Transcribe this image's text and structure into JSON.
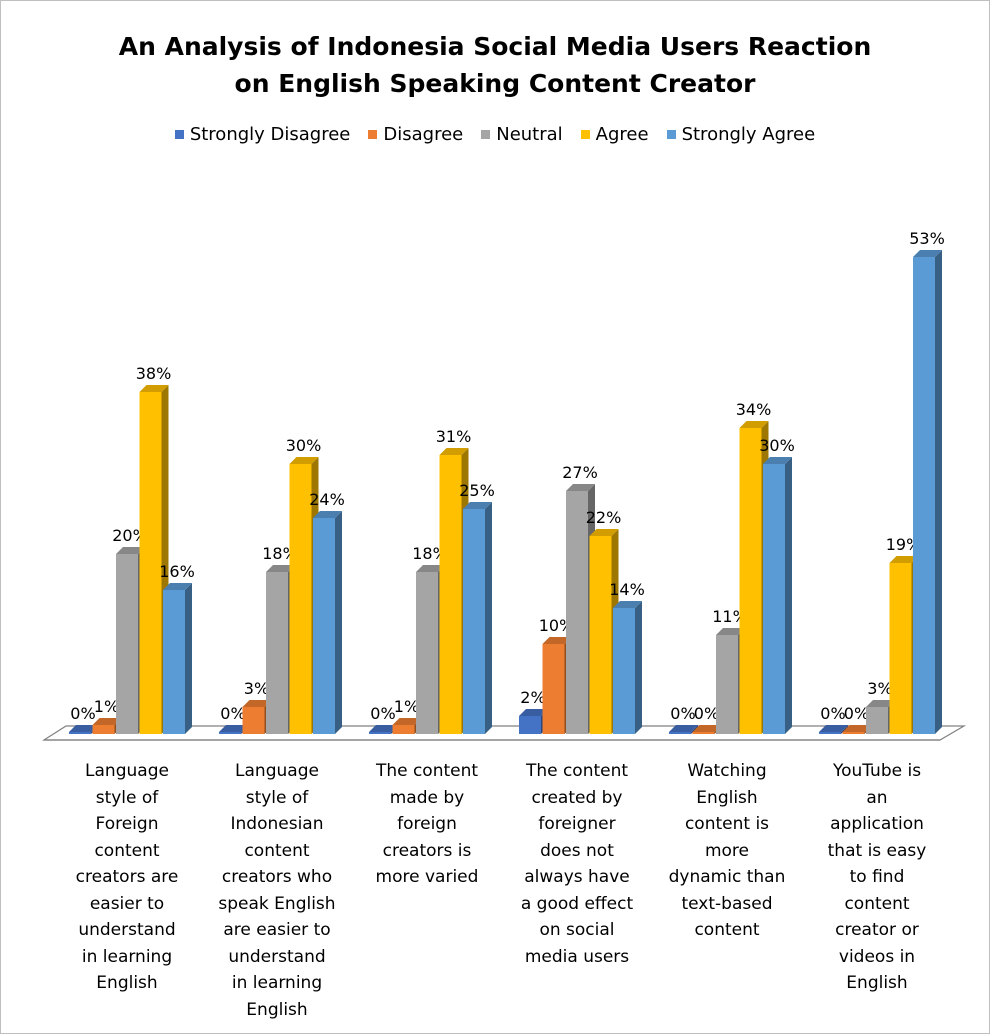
{
  "chart_data": {
    "type": "bar",
    "title_lines": [
      "An Analysis of Indonesia Social Media Users Reaction",
      "on English Speaking Content Creator"
    ],
    "legend_position": "top",
    "categories": [
      "Language style of Foreign content creators are easier to understand in learning English",
      "Language style of Indonesian content creators who speak English are easier to understand in learning English",
      "The content made by foreign creators is more varied",
      "The content created by foreigner does not always have a good effect on social media users",
      "Watching English content is more dynamic than text-based content",
      "YouTube is an application that is easy to find content creator or videos in English"
    ],
    "category_lines": [
      [
        "Language",
        "style of",
        "Foreign",
        "content",
        "creators are",
        "easier to",
        "understand",
        "in learning",
        "English"
      ],
      [
        "Language",
        "style of",
        "Indonesian",
        "content",
        "creators who",
        "speak English",
        "are easier to",
        "understand",
        "in learning",
        "English"
      ],
      [
        "The content",
        "made by",
        "foreign",
        "creators is",
        "more varied"
      ],
      [
        "The content",
        "created by",
        "foreigner",
        "does not",
        "always have",
        "a good effect",
        "on social",
        "media users"
      ],
      [
        "Watching",
        "English",
        "content is",
        "more",
        "dynamic than",
        "text-based",
        "content"
      ],
      [
        "YouTube is",
        "an",
        "application",
        "that is easy",
        "to find",
        "content",
        "creator or",
        "videos in",
        "English"
      ]
    ],
    "series": [
      {
        "name": "Strongly Disagree",
        "color": "#4472C4",
        "values": [
          0,
          0,
          0,
          2,
          0,
          0
        ],
        "labels": [
          "0%",
          "0%",
          "0%",
          "2%",
          "0%",
          "0%"
        ]
      },
      {
        "name": "Disagree",
        "color": "#ED7D31",
        "values": [
          1,
          3,
          1,
          10,
          0,
          0
        ],
        "labels": [
          "1%",
          "3%",
          "1%",
          "10%",
          "0%",
          "0%"
        ]
      },
      {
        "name": "Neutral",
        "color": "#A5A5A5",
        "values": [
          20,
          18,
          18,
          27,
          11,
          3
        ],
        "labels": [
          "20%",
          "18%",
          "18%",
          "27%",
          "11%",
          "3%"
        ]
      },
      {
        "name": "Agree",
        "color": "#FFC000",
        "values": [
          38,
          30,
          31,
          22,
          34,
          19
        ],
        "labels": [
          "38%",
          "30%",
          "31%",
          "22%",
          "34%",
          "19%"
        ]
      },
      {
        "name": "Strongly Agree",
        "color": "#5B9BD5",
        "values": [
          16,
          24,
          25,
          14,
          30,
          53
        ],
        "labels": [
          "16%",
          "24%",
          "25%",
          "14%",
          "30%",
          "53%"
        ]
      }
    ],
    "grid": false
  }
}
